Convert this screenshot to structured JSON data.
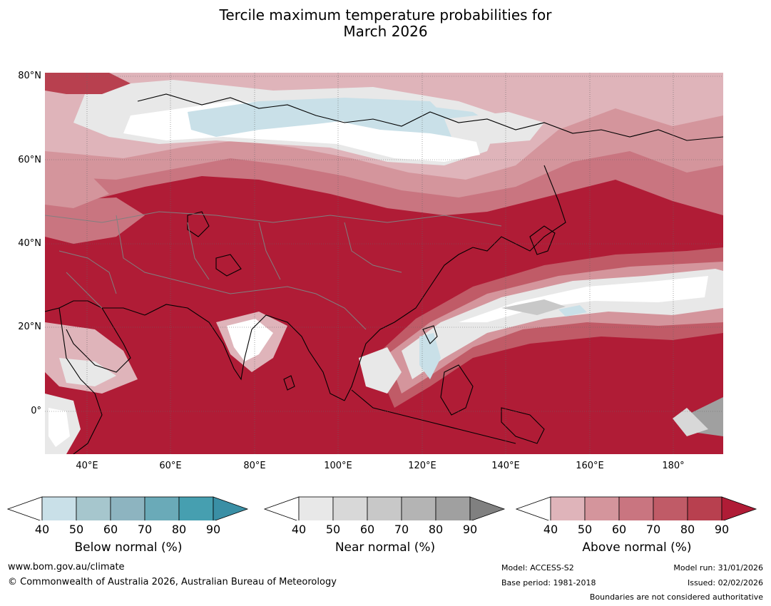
{
  "title": {
    "line1": "Tercile maximum temperature probabilities for",
    "line2": "March 2026"
  },
  "map": {
    "lat_labels": [
      "80°N",
      "60°N",
      "40°N",
      "20°N",
      "0°"
    ],
    "lon_labels": [
      "40°E",
      "60°E",
      "80°E",
      "100°E",
      "120°E",
      "140°E",
      "160°E",
      "180°"
    ],
    "colors": {
      "a40": "#dfb4ba",
      "a50": "#d4959c",
      "a60": "#c97580",
      "a70": "#c05b67",
      "a80": "#b8404f",
      "a90": "#b01c36",
      "n40": "#e8e8e8",
      "n50": "#d8d8d8",
      "n60": "#c8c8c8",
      "n70": "#b4b4b4",
      "n80": "#a0a0a0",
      "n90": "#808080",
      "b40": "#c9e0e8",
      "b50": "#a6c6cd",
      "b60": "#8db4c0",
      "b70": "#6aaab8",
      "b80": "#469fb0",
      "b90": "#3a8fa5"
    }
  },
  "colorbars": [
    {
      "name": "below",
      "label": "Below normal (%)",
      "ticks": [
        "40",
        "50",
        "60",
        "70",
        "80",
        "90"
      ],
      "colors": [
        "#c9e0e8",
        "#a6c6cd",
        "#8db4c0",
        "#6aaab8",
        "#469fb0",
        "#3a8fa5"
      ]
    },
    {
      "name": "near",
      "label": "Near normal (%)",
      "ticks": [
        "40",
        "50",
        "60",
        "70",
        "80",
        "90"
      ],
      "colors": [
        "#e8e8e8",
        "#d8d8d8",
        "#c8c8c8",
        "#b4b4b4",
        "#a0a0a0",
        "#808080"
      ]
    },
    {
      "name": "above",
      "label": "Above normal (%)",
      "ticks": [
        "40",
        "50",
        "60",
        "70",
        "80",
        "90"
      ],
      "colors": [
        "#dfb4ba",
        "#d4959c",
        "#c97580",
        "#c05b67",
        "#b8404f",
        "#b01c36"
      ]
    }
  ],
  "footer": {
    "website": "www.bom.gov.au/climate",
    "copyright": "© Commonwealth of Australia 2026, Australian Bureau of Meteorology",
    "model": "Model: ACCESS-S2",
    "base_period": "Base period: 1981-2018",
    "model_run": "Model run: 31/01/2026",
    "issued": "Issued: 02/02/2026",
    "disclaimer": "Boundaries are not considered authoritative"
  }
}
